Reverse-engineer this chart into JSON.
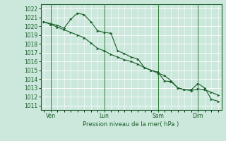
{
  "bg_color": "#cce8dc",
  "grid_color": "#ffffff",
  "line_color": "#1a5e2a",
  "marker_color": "#1a5e2a",
  "xlabel": "Pression niveau de la mer( hPa )",
  "ylim": [
    1010.5,
    1022.5
  ],
  "yticks": [
    1011,
    1012,
    1013,
    1014,
    1015,
    1016,
    1017,
    1018,
    1019,
    1020,
    1021,
    1022
  ],
  "xtick_labels": [
    "Ven",
    "Lun",
    "Sam",
    "Dim"
  ],
  "xtick_positions": [
    1,
    9,
    17,
    23
  ],
  "vline_color": "#2d7a3a",
  "series1": [
    1020.5,
    1020.3,
    1020.1,
    1019.8,
    1020.8,
    1021.5,
    1021.3,
    1020.5,
    1019.5,
    1019.3,
    1019.2,
    1017.2,
    1016.9,
    1016.5,
    1016.3,
    1015.3,
    1015.0,
    1014.8,
    1013.8,
    1013.7,
    1013.0,
    1012.8,
    1012.8,
    1013.5,
    1013.0,
    1011.7,
    1011.5
  ],
  "series2": [
    1020.5,
    1020.2,
    1019.9,
    1019.6,
    1019.3,
    1019.0,
    1018.7,
    1018.1,
    1017.5,
    1017.2,
    1016.8,
    1016.5,
    1016.2,
    1016.0,
    1015.7,
    1015.3,
    1015.0,
    1014.7,
    1014.4,
    1013.8,
    1013.0,
    1012.8,
    1012.7,
    1012.9,
    1012.8,
    1012.5,
    1012.2
  ],
  "n_points": 27,
  "figsize": [
    3.2,
    2.0
  ],
  "dpi": 100
}
